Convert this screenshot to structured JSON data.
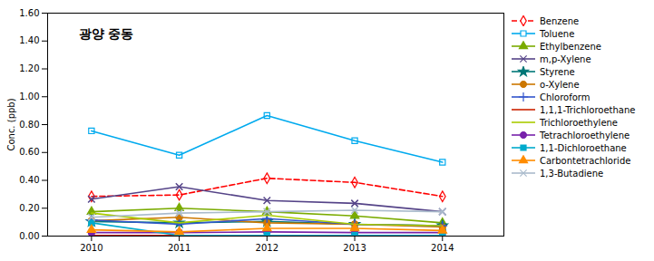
{
  "chart_data": {
    "type": "line",
    "ylabel": "Conc. (ppb)",
    "annotation": "광양 중동",
    "x": [
      2010,
      2011,
      2012,
      2013,
      2014
    ],
    "xlim": [
      2009.5,
      2014.7
    ],
    "xticks": [
      2010,
      2011,
      2012,
      2013,
      2014
    ],
    "ylim": [
      0.0,
      1.6
    ],
    "yticks": [
      {
        "value": 0.0,
        "label": "0.00"
      },
      {
        "value": 0.2,
        "label": "0.20"
      },
      {
        "value": 0.4,
        "label": "0.40"
      },
      {
        "value": 0.6,
        "label": "0.60"
      },
      {
        "value": 0.8,
        "label": "0.80"
      },
      {
        "value": 1.0,
        "label": "1.00"
      },
      {
        "value": 1.2,
        "label": "1.20"
      },
      {
        "value": 1.4,
        "label": "1.40"
      },
      {
        "value": 1.6,
        "label": "1.60"
      }
    ],
    "grid": false,
    "legend": "right",
    "series": [
      {
        "name": "Benzene",
        "color": "#FF0000",
        "marker": "open-diamond",
        "line_style": "dashed",
        "values": [
          0.285,
          0.295,
          0.415,
          0.385,
          0.285
        ]
      },
      {
        "name": "Toluene",
        "color": "#00AAEE",
        "marker": "open-square",
        "line_style": "solid",
        "values": [
          0.755,
          0.58,
          0.865,
          0.685,
          0.53
        ]
      },
      {
        "name": "Ethylbenzene",
        "color": "#7AAB00",
        "marker": "triangle",
        "line_style": "solid",
        "values": [
          0.175,
          0.2,
          0.175,
          0.145,
          0.095
        ]
      },
      {
        "name": "m,p-Xylene",
        "color": "#554488",
        "marker": "times",
        "line_style": "solid",
        "values": [
          0.265,
          0.355,
          0.255,
          0.235,
          0.175
        ]
      },
      {
        "name": "Styrene",
        "color": "#007777",
        "marker": "star",
        "line_style": "solid",
        "values": [
          0.105,
          0.095,
          0.105,
          0.085,
          0.075
        ]
      },
      {
        "name": "o-Xylene",
        "color": "#CC7700",
        "marker": "circle",
        "line_style": "solid",
        "values": [
          0.11,
          0.135,
          0.095,
          0.085,
          0.065
        ]
      },
      {
        "name": "Chloroform",
        "color": "#3355CC",
        "marker": "plus",
        "line_style": "solid",
        "values": [
          0.115,
          0.085,
          0.125,
          0.085,
          0.075
        ]
      },
      {
        "name": "1,1,1-Trichloroethane",
        "color": "#CC2200",
        "marker": "none",
        "line_style": "solid",
        "values": [
          0.005,
          0.005,
          0.005,
          0.005,
          0.005
        ]
      },
      {
        "name": "Trichloroethylene",
        "color": "#AACC00",
        "marker": "none",
        "line_style": "solid",
        "values": [
          0.165,
          0.095,
          0.15,
          0.085,
          0.075
        ]
      },
      {
        "name": "Tetrachloroethylene",
        "color": "#7722AA",
        "marker": "circle",
        "line_style": "solid",
        "values": [
          0.025,
          0.025,
          0.03,
          0.025,
          0.025
        ]
      },
      {
        "name": "1,1-Dichloroethane",
        "color": "#00AACC",
        "marker": "square",
        "line_style": "solid",
        "values": [
          0.095,
          0.005,
          0.005,
          0.005,
          0.005
        ]
      },
      {
        "name": "Carbontetrachloride",
        "color": "#FF8C00",
        "marker": "triangle",
        "line_style": "solid",
        "values": [
          0.045,
          0.03,
          0.055,
          0.055,
          0.04
        ]
      },
      {
        "name": "1,3-Butadiene",
        "color": "#AABBCC",
        "marker": "times",
        "line_style": "solid",
        "values": [
          0.135,
          0.165,
          0.175,
          0.185,
          0.175
        ]
      }
    ]
  }
}
